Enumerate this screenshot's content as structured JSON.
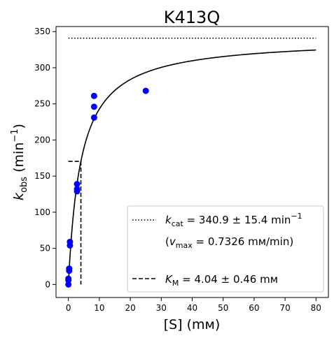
{
  "chart_data": {
    "type": "scatter",
    "title": "K413Q",
    "xlabel": "[S] (mм)",
    "ylabel": {
      "base": "k",
      "sub": "obs",
      "unit_open": " (min",
      "sup": "−1",
      "unit_close": ")"
    },
    "xlim": [
      -4,
      84
    ],
    "ylim": [
      -18,
      357
    ],
    "xticks": [
      0,
      10,
      20,
      30,
      40,
      50,
      60,
      70,
      80
    ],
    "yticks": [
      0,
      50,
      100,
      150,
      200,
      250,
      300,
      350
    ],
    "grid": false,
    "legend_placement": "lower-right",
    "points": {
      "name": "data",
      "color": "#0000ff",
      "x": [
        0,
        0,
        0,
        0.25,
        0.25,
        0.5,
        0.5,
        2.8,
        2.8,
        2.8,
        8.3,
        8.3,
        8.3,
        25
      ],
      "y": [
        0,
        6,
        8,
        19,
        22,
        54,
        59,
        129,
        132,
        139,
        231,
        246,
        261,
        268
      ]
    },
    "fit": {
      "kcat": 340.9,
      "KM": 4.04,
      "x_range": [
        0,
        80
      ],
      "color": "#000000"
    },
    "kcat_line": {
      "y": 340.9,
      "x_range": [
        0,
        80
      ],
      "style": "dotted"
    },
    "km_line": {
      "x": 4.04,
      "y_half": 170.45,
      "x_start": 0,
      "style": "dashed"
    },
    "legend": {
      "kcat": {
        "sym": "k",
        "sub": "cat",
        "text": " = 340.9 ± 15.4 min",
        "sup": "−1"
      },
      "vmax": {
        "open": "(",
        "sym": "v",
        "sub": "max",
        "text": " = 0.7326 mм/min)"
      },
      "km": {
        "sym": "K",
        "sub": "M",
        "text": " = 4.04 ± 0.46 mм"
      }
    }
  }
}
